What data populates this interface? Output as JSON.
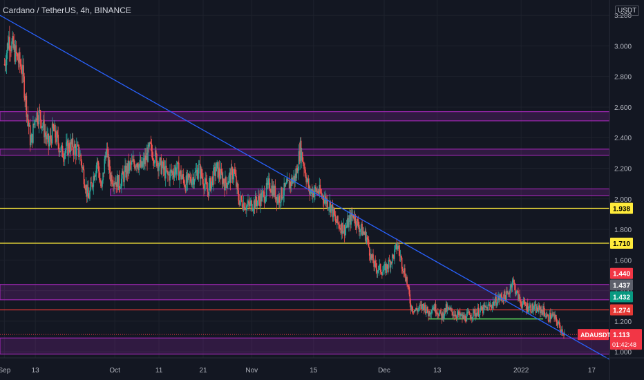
{
  "header": {
    "title": "Cardano / TetherUS, 4h, BINANCE",
    "unit": "USDT"
  },
  "chart_data": {
    "type": "candlestick",
    "symbol": "ADAUSDT",
    "ylim": [
      0.96,
      3.3
    ],
    "y_ticks": [
      1.0,
      1.2,
      1.4,
      1.6,
      1.8,
      2.0,
      2.2,
      2.4,
      2.6,
      2.8,
      3.0,
      3.2
    ],
    "y_tick_labels": [
      "1.000",
      "1.200",
      "1.400",
      "1.600",
      "1.800",
      "2.000",
      "2.200",
      "2.400",
      "2.600",
      "2.800",
      "3.000",
      "3.200"
    ],
    "x_labels": [
      {
        "label": "Sep",
        "day": 0
      },
      {
        "label": "13",
        "day": 7
      },
      {
        "label": "Oct",
        "day": 25
      },
      {
        "label": "11",
        "day": 35
      },
      {
        "label": "21",
        "day": 45
      },
      {
        "label": "Nov",
        "day": 56
      },
      {
        "label": "15",
        "day": 70
      },
      {
        "label": "Dec",
        "day": 86
      },
      {
        "label": "13",
        "day": 98
      },
      {
        "label": "2022",
        "day": 117
      },
      {
        "label": "17",
        "day": 133
      }
    ],
    "x_day_range": [
      -1,
      137
    ],
    "zones": [
      {
        "low": 2.51,
        "high": 2.57,
        "from_day": -1,
        "to_day": 137,
        "color": "#9c27b0"
      },
      {
        "low": 2.285,
        "high": 2.325,
        "from_day": -1,
        "to_day": 137,
        "color": "#9c27b0"
      },
      {
        "low": 2.02,
        "high": 2.065,
        "from_day": 24,
        "to_day": 137,
        "color": "#9c27b0"
      },
      {
        "low": 1.34,
        "high": 1.44,
        "from_day": -1,
        "to_day": 137,
        "color": "#9c27b0"
      },
      {
        "low": 0.985,
        "high": 1.09,
        "from_day": -1,
        "to_day": 137,
        "color": "#9c27b0"
      }
    ],
    "horizontal_lines": [
      {
        "value": 1.938,
        "color": "#ffeb3b",
        "label": "1.938"
      },
      {
        "value": 1.71,
        "color": "#ffeb3b",
        "label": "1.710"
      },
      {
        "value": 1.274,
        "color": "#e53935",
        "label": "1.274"
      }
    ],
    "green_segment": {
      "value": 1.215,
      "from_day": 96,
      "to_day": 122
    },
    "trendline": {
      "from_day": -1,
      "from_value": 3.2,
      "to_day": 137,
      "to_value": 0.95
    },
    "price_tags": [
      {
        "value": 1.44,
        "label": "1.440",
        "color": "#f23645"
      },
      {
        "value": 1.437,
        "label": "1.437",
        "color": "#5d606b"
      },
      {
        "value": 1.432,
        "label": "1.432",
        "color": "#089981"
      }
    ],
    "last_price": {
      "symbol": "ADAUSDT",
      "value": 1.113,
      "label": "1.113",
      "countdown": "01:42:48",
      "color": "#f23645"
    },
    "close_path": [
      [
        0,
        2.88
      ],
      [
        1,
        3.05
      ],
      [
        2,
        2.98
      ],
      [
        4,
        2.85
      ],
      [
        5,
        2.6
      ],
      [
        6,
        2.35
      ],
      [
        7,
        2.55
      ],
      [
        8,
        2.55
      ],
      [
        9,
        2.45
      ],
      [
        10,
        2.35
      ],
      [
        11,
        2.45
      ],
      [
        12,
        2.38
      ],
      [
        13,
        2.3
      ],
      [
        15,
        2.35
      ],
      [
        17,
        2.3
      ],
      [
        19,
        2.0
      ],
      [
        21,
        2.25
      ],
      [
        22,
        2.05
      ],
      [
        23,
        2.33
      ],
      [
        24,
        2.15
      ],
      [
        26,
        2.1
      ],
      [
        28,
        2.2
      ],
      [
        30,
        2.25
      ],
      [
        31,
        2.2
      ],
      [
        33,
        2.33
      ],
      [
        35,
        2.23
      ],
      [
        37,
        2.15
      ],
      [
        39,
        2.2
      ],
      [
        41,
        2.1
      ],
      [
        43,
        2.15
      ],
      [
        44,
        2.2
      ],
      [
        46,
        2.05
      ],
      [
        48,
        2.2
      ],
      [
        50,
        2.1
      ],
      [
        52,
        2.18
      ],
      [
        53,
        2.0
      ],
      [
        55,
        1.95
      ],
      [
        57,
        1.98
      ],
      [
        59,
        2.03
      ],
      [
        60,
        2.1
      ],
      [
        62,
        2.0
      ],
      [
        64,
        2.08
      ],
      [
        66,
        2.15
      ],
      [
        67,
        2.33
      ],
      [
        68,
        2.2
      ],
      [
        69,
        2.05
      ],
      [
        71,
        2.05
      ],
      [
        72,
        2.02
      ],
      [
        74,
        1.95
      ],
      [
        75,
        1.85
      ],
      [
        77,
        1.8
      ],
      [
        79,
        1.9
      ],
      [
        80,
        1.83
      ],
      [
        82,
        1.75
      ],
      [
        83,
        1.62
      ],
      [
        84,
        1.55
      ],
      [
        86,
        1.53
      ],
      [
        88,
        1.62
      ],
      [
        89,
        1.7
      ],
      [
        90,
        1.58
      ],
      [
        91,
        1.48
      ],
      [
        92,
        1.3
      ],
      [
        93,
        1.27
      ],
      [
        95,
        1.3
      ],
      [
        96,
        1.25
      ],
      [
        97,
        1.3
      ],
      [
        98,
        1.27
      ],
      [
        99,
        1.23
      ],
      [
        100,
        1.28
      ],
      [
        102,
        1.25
      ],
      [
        104,
        1.22
      ],
      [
        106,
        1.25
      ],
      [
        108,
        1.27
      ],
      [
        110,
        1.3
      ],
      [
        112,
        1.35
      ],
      [
        114,
        1.37
      ],
      [
        115,
        1.47
      ],
      [
        116,
        1.38
      ],
      [
        117,
        1.32
      ],
      [
        118,
        1.3
      ],
      [
        120,
        1.28
      ],
      [
        122,
        1.27
      ],
      [
        123,
        1.22
      ],
      [
        124,
        1.24
      ],
      [
        125,
        1.2
      ],
      [
        126,
        1.15
      ],
      [
        127,
        1.113
      ]
    ]
  }
}
